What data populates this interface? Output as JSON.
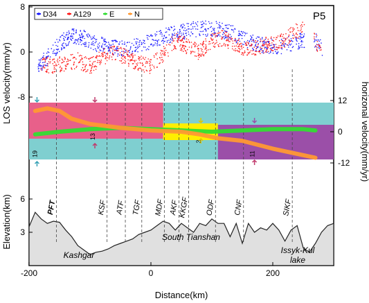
{
  "chart_data": [
    {
      "type": "scatter",
      "panel": "LOS velocity",
      "profile_label": "P5",
      "ylabel": "LOS velocity(mm/yr)",
      "ylim": [
        -8,
        8
      ],
      "yticks": [
        "8",
        "0",
        "-8"
      ],
      "xlim": [
        -200,
        300
      ],
      "series": [
        {
          "name": "D34",
          "color": "#1a1aff",
          "x": [
            -185,
            -170,
            -150,
            -130,
            -110,
            -90,
            -70,
            -50,
            -30,
            -10,
            10,
            30,
            50,
            70,
            90,
            110,
            130,
            150,
            170,
            190,
            210,
            230,
            245,
            260,
            270,
            278,
            282
          ],
          "y": [
            -2.5,
            -1.0,
            1.5,
            3.0,
            2.5,
            1.5,
            1.0,
            0.5,
            1.0,
            1.5,
            2.5,
            3.0,
            3.5,
            4.0,
            4.2,
            4.0,
            3.5,
            2.5,
            1.5,
            1.0,
            1.0,
            1.5,
            2.0,
            2.5,
            2.0,
            1.0,
            0.0
          ]
        },
        {
          "name": "A129",
          "color": "#ff1a1a",
          "x": [
            -180,
            -160,
            -140,
            -120,
            -100,
            -80,
            -60,
            -40,
            -20,
            0,
            20,
            40,
            60,
            80,
            100,
            120,
            140,
            160,
            180,
            200,
            220,
            235,
            250,
            270,
            280
          ],
          "y": [
            -2.0,
            -2.5,
            -2.0,
            -1.5,
            -2.5,
            -1.0,
            0.0,
            -1.0,
            -2.0,
            -2.5,
            -0.5,
            2.0,
            1.0,
            0.0,
            2.0,
            2.5,
            1.0,
            0.5,
            1.0,
            1.5,
            2.0,
            3.5,
            4.0,
            2.0,
            0.5
          ]
        }
      ]
    },
    {
      "type": "line",
      "panel": "horizontal velocity",
      "ylabel": "horizonal velocity(mm/yr)",
      "ylim": [
        -12,
        12
      ],
      "yticks": [
        "12",
        "0",
        "-12"
      ],
      "xlim": [
        -200,
        300
      ],
      "series": [
        {
          "name": "E",
          "color": "#33dd33",
          "x": [
            -190,
            -150,
            -100,
            -50,
            0,
            50,
            100,
            150,
            200,
            250,
            270
          ],
          "y": [
            -1.0,
            0.0,
            1.0,
            1.5,
            1.0,
            0.5,
            0.0,
            0.5,
            1.0,
            1.0,
            0.5
          ]
        },
        {
          "name": "N",
          "color": "#ff9933",
          "x": [
            -190,
            -170,
            -150,
            -130,
            -100,
            -50,
            0,
            50,
            80,
            100,
            110,
            150,
            200,
            250,
            270
          ],
          "y": [
            8.0,
            9.0,
            8.0,
            5.0,
            3.0,
            1.5,
            0.5,
            0.0,
            -1.0,
            -2.0,
            -2.5,
            -3.5,
            -6.5,
            -9.0,
            -10.0
          ]
        }
      ],
      "bands": [
        {
          "label": "19",
          "value_note": "rate"
        },
        {
          "label": "13",
          "value_note": "rate"
        },
        {
          "label": "3",
          "value_note": "rate"
        },
        {
          "label": "11",
          "value_note": "rate"
        }
      ]
    },
    {
      "type": "area",
      "panel": "Elevation",
      "ylabel": "Elevation(km)",
      "xlabel": "Distance(km)",
      "ylim": [
        0,
        7
      ],
      "yticks": [
        "6",
        "3"
      ],
      "xlim": [
        -200,
        300
      ],
      "xticks": [
        "-200",
        "0",
        "200"
      ],
      "x": [
        -200,
        -190,
        -180,
        -170,
        -160,
        -150,
        -140,
        -130,
        -120,
        -110,
        -100,
        -90,
        -80,
        -70,
        -60,
        -50,
        -40,
        -30,
        -20,
        -10,
        0,
        10,
        20,
        30,
        40,
        50,
        60,
        70,
        80,
        90,
        100,
        110,
        120,
        130,
        140,
        150,
        160,
        170,
        180,
        190,
        200,
        210,
        220,
        230,
        240,
        250,
        260,
        270,
        280,
        290,
        300
      ],
      "y": [
        3.5,
        4.8,
        4.2,
        3.8,
        4.0,
        3.9,
        3.2,
        2.6,
        1.8,
        1.4,
        1.0,
        1.2,
        1.3,
        1.5,
        1.8,
        2.0,
        2.2,
        2.4,
        2.8,
        3.0,
        3.2,
        3.6,
        4.0,
        3.8,
        3.2,
        3.8,
        3.4,
        3.0,
        3.8,
        3.6,
        4.2,
        3.8,
        3.8,
        2.6,
        3.8,
        2.0,
        3.8,
        3.0,
        3.4,
        3.2,
        3.8,
        3.2,
        2.2,
        3.2,
        3.6,
        1.6,
        1.2,
        2.0,
        3.0,
        3.6,
        3.8
      ],
      "regions": [
        "Kashgar",
        "South Tianshan",
        "Issyk-Kul lake"
      ],
      "faults": [
        {
          "name": "PFT",
          "x": -155
        },
        {
          "name": "KSF",
          "x": -72
        },
        {
          "name": "ATF",
          "x": -42
        },
        {
          "name": "TGF",
          "x": -15
        },
        {
          "name": "MDF",
          "x": 22
        },
        {
          "name": "AKF",
          "x": 46
        },
        {
          "name": "KKGF",
          "x": 62
        },
        {
          "name": "ODF",
          "x": 106
        },
        {
          "name": "CNF",
          "x": 152
        },
        {
          "name": "SIKF",
          "x": 232
        }
      ]
    }
  ],
  "legend": {
    "entries": [
      "D34",
      "A129",
      "E",
      "N"
    ]
  },
  "colors": {
    "pink_band": "#e8608a",
    "teal_band": "#7fcfd0",
    "yellow_band": "#ffee00",
    "purple_band": "#9b4fa8",
    "terrain_fill": "#e0e0e0"
  }
}
